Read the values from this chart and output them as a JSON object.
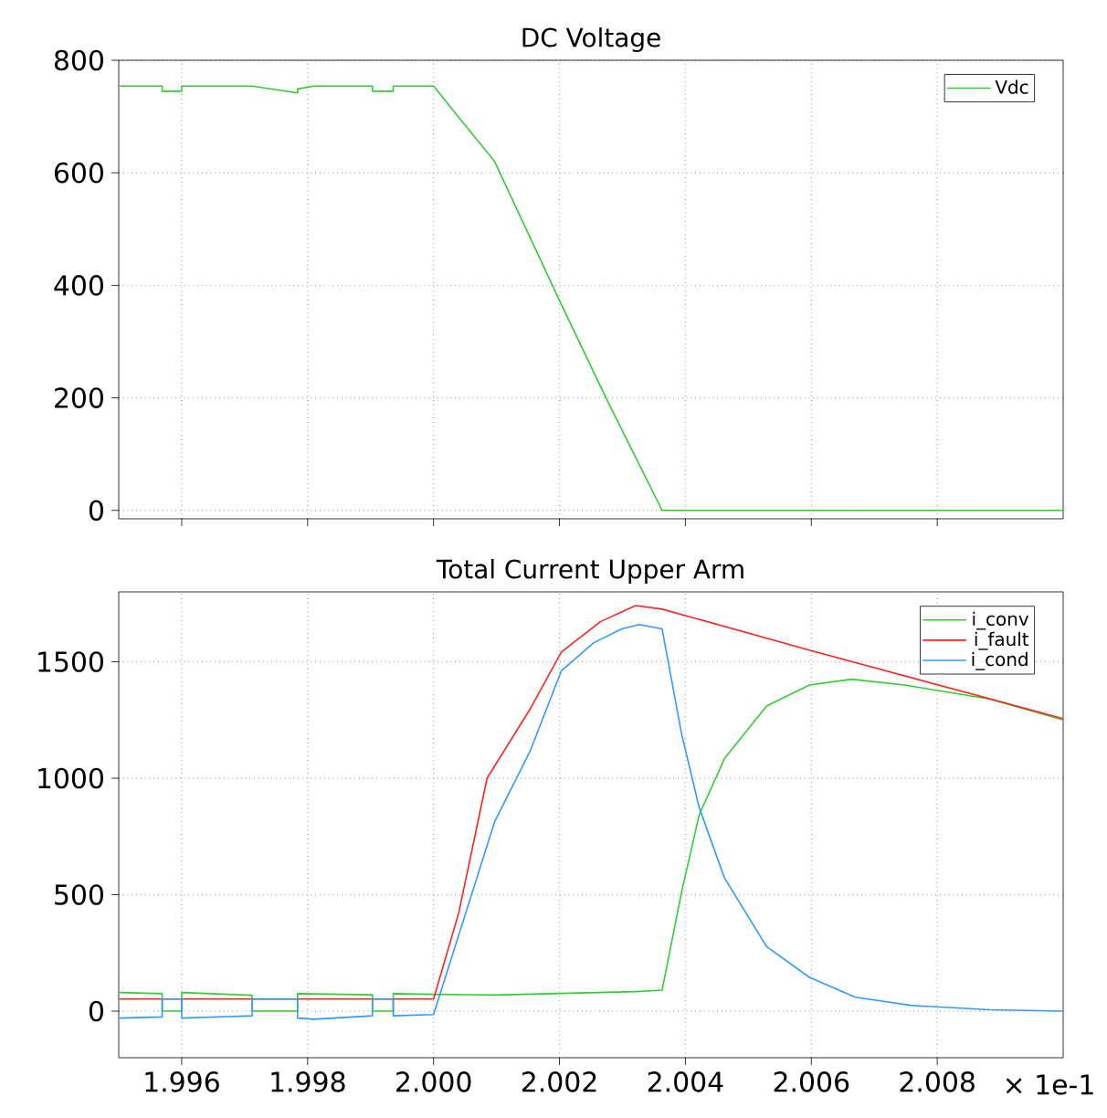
{
  "chart_data": [
    {
      "type": "line",
      "title": "DC Voltage",
      "xlim": [
        1.995,
        2.01
      ],
      "ylim": [
        -15,
        800
      ],
      "xticks": [
        {
          "value": 1.996,
          "label": null
        },
        {
          "value": 1.998,
          "label": null
        },
        {
          "value": 2.0,
          "label": null
        },
        {
          "value": 2.002,
          "label": null
        },
        {
          "value": 2.004,
          "label": null
        },
        {
          "value": 2.006,
          "label": null
        },
        {
          "value": 2.008,
          "label": null
        }
      ],
      "yticks": [
        0,
        200,
        400,
        600,
        800
      ],
      "tick_labels": "y",
      "grid": true,
      "legend": "top right",
      "line_style": "solid",
      "series": [
        {
          "name": "Vdc",
          "color": "#33cc33",
          "x": [
            1.99501,
            1.99569,
            1.99569,
            1.996,
            1.996,
            1.99712,
            1.99784,
            1.99784,
            1.9981,
            1.99903,
            1.99903,
            1.99936,
            1.99936,
            2.0,
            2.00097,
            2.00203,
            2.00276,
            2.00363,
            2.01
          ],
          "values": [
            754,
            754,
            745,
            745,
            754,
            754,
            742,
            749,
            754,
            754,
            745,
            745,
            754,
            754,
            620,
            366,
            195,
            0,
            0
          ]
        }
      ]
    },
    {
      "type": "line",
      "title": "Total Current Upper Arm",
      "xlim": [
        1.995,
        2.01
      ],
      "ylim": [
        -200,
        1800
      ],
      "xticks": [
        {
          "value": 1.996,
          "label": "1.996"
        },
        {
          "value": 1.998,
          "label": "1.998"
        },
        {
          "value": 2.0,
          "label": "2.000"
        },
        {
          "value": 2.002,
          "label": "2.002"
        },
        {
          "value": 2.004,
          "label": "2.004"
        },
        {
          "value": 2.006,
          "label": "2.006"
        },
        {
          "value": 2.008,
          "label": "2.008"
        }
      ],
      "yticks": [
        0,
        500,
        1000,
        1500
      ],
      "grid": true,
      "legend": "top right",
      "line_style": "solid",
      "annotations": [
        "× 1e-1"
      ],
      "series": [
        {
          "name": "i_conv",
          "color": "#33cc33",
          "x": [
            1.99501,
            1.99569,
            1.99569,
            1.996,
            1.996,
            1.99712,
            1.99712,
            1.99784,
            1.99784,
            1.99903,
            1.99903,
            1.99936,
            1.99936,
            2.0,
            2.00097,
            2.00321,
            2.00363,
            2.00394,
            2.00422,
            2.00462,
            2.00529,
            2.00597,
            2.00664,
            2.00748,
            2.00883,
            2.01
          ],
          "values": [
            80,
            75,
            0,
            0,
            80,
            68,
            0,
            0,
            75,
            70,
            0,
            0,
            75,
            72,
            69,
            84,
            90,
            512,
            843,
            1084,
            1310,
            1400,
            1425,
            1400,
            1340,
            1250
          ]
        },
        {
          "name": "i_fault",
          "color": "#ff2222",
          "x": [
            1.99501,
            2.0,
            2.0004,
            2.00085,
            2.00153,
            2.00203,
            2.00265,
            2.00321,
            2.00363,
            2.00602,
            2.01
          ],
          "values": [
            52,
            52,
            422,
            1000,
            1295,
            1542,
            1672,
            1741,
            1726,
            1546,
            1256
          ]
        },
        {
          "name": "i_cond",
          "color": "#3399ff",
          "x": [
            1.99501,
            1.99569,
            1.99569,
            1.996,
            1.996,
            1.99712,
            1.99712,
            1.99784,
            1.99784,
            1.9981,
            1.99903,
            1.99903,
            1.99936,
            1.99936,
            2.0,
            2.00097,
            2.00153,
            2.00203,
            2.00254,
            2.00299,
            2.00327,
            2.00363,
            2.00394,
            2.00422,
            2.00462,
            2.00529,
            2.00597,
            2.0067,
            2.0076,
            2.00883,
            2.01
          ],
          "values": [
            -30,
            -25,
            52,
            52,
            -30,
            -20,
            52,
            52,
            -30,
            -35,
            -20,
            52,
            52,
            -20,
            -15,
            813,
            1114,
            1461,
            1581,
            1641,
            1660,
            1641,
            1190,
            873,
            572,
            277,
            145,
            60,
            24,
            6,
            0
          ]
        }
      ]
    }
  ]
}
